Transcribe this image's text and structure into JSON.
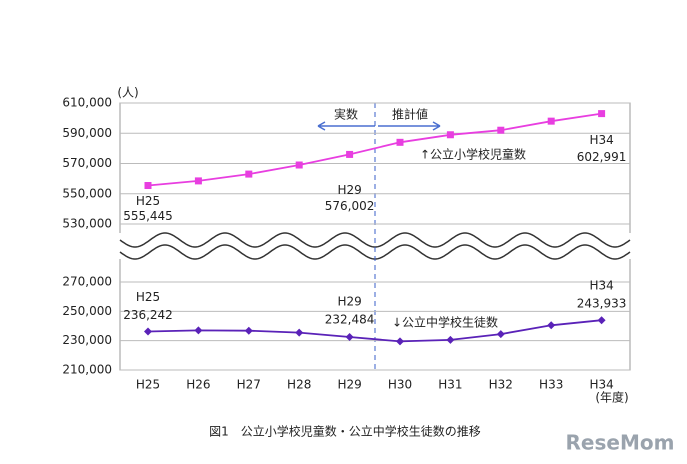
{
  "chart_data": {
    "type": "line",
    "y_unit": "(人)",
    "x_unit": "(年度)",
    "caption": "図1　公立小学校児童数・公立中学校生徒数の推移",
    "logo": "ReseMom",
    "categories": [
      "H25",
      "H26",
      "H27",
      "H28",
      "H29",
      "H30",
      "H31",
      "H32",
      "H33",
      "H34"
    ],
    "annotations": {
      "actual": "実数",
      "estimate": "推計値"
    },
    "grid": true,
    "panels": [
      {
        "ylim": [
          530000,
          610000
        ],
        "yticks": [
          {
            "value": 530000,
            "label": "530,000"
          },
          {
            "value": 550000,
            "label": "550,000"
          },
          {
            "value": 570000,
            "label": "570,000"
          },
          {
            "value": 590000,
            "label": "590,000"
          },
          {
            "value": 610000,
            "label": "610,000"
          }
        ],
        "series": [
          {
            "name": "↑公立小学校児童数",
            "color": "#e83ee0",
            "values": [
              555445,
              558500,
              563000,
              569000,
              576002,
              584000,
              589000,
              592000,
              598000,
              602991
            ],
            "value_labels": [
              "555,445",
              null,
              null,
              null,
              "576,002",
              null,
              null,
              null,
              null,
              "602,991"
            ],
            "point_tags": [
              "H25",
              null,
              null,
              null,
              "H29",
              null,
              null,
              null,
              null,
              "H34"
            ]
          }
        ]
      },
      {
        "ylim": [
          210000,
          270000
        ],
        "yticks": [
          {
            "value": 210000,
            "label": "210,000"
          },
          {
            "value": 230000,
            "label": "230,000"
          },
          {
            "value": 250000,
            "label": "250,000"
          },
          {
            "value": 270000,
            "label": "270,000"
          }
        ],
        "series": [
          {
            "name": "↓公立中学校生徒数",
            "color": "#5a22b8",
            "values": [
              236242,
              237000,
              236800,
              235500,
              232484,
              229500,
              230500,
              234500,
              240500,
              243933
            ],
            "value_labels": [
              "236,242",
              null,
              null,
              null,
              "232,484",
              null,
              null,
              null,
              null,
              "243,933"
            ],
            "point_tags": [
              "H25",
              null,
              null,
              null,
              "H29",
              null,
              null,
              null,
              null,
              "H34"
            ]
          }
        ]
      }
    ]
  }
}
